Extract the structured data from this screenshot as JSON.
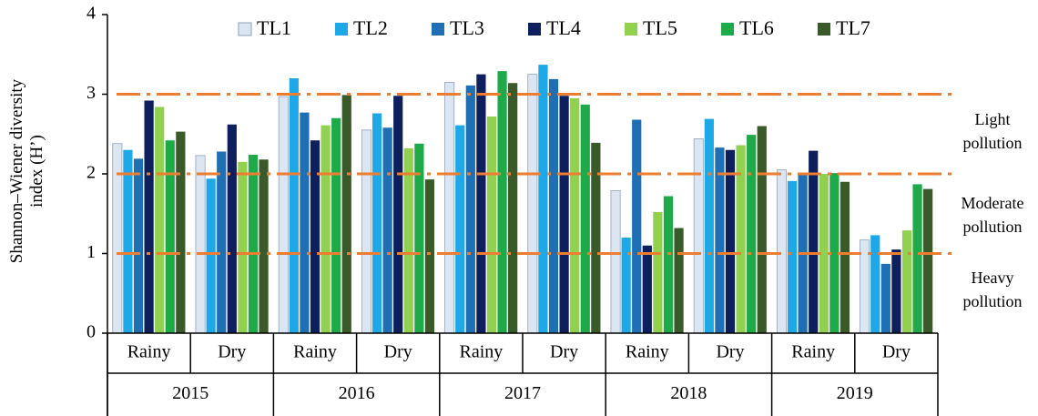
{
  "chart_data": {
    "type": "bar",
    "ylabel": "Shannon–Wiener diversity index (H’)",
    "categories": [
      "Rainy",
      "Dry",
      "Rainy",
      "Dry",
      "Rainy",
      "Dry",
      "Rainy",
      "Dry",
      "Rainy",
      "Dry"
    ],
    "x_groups": [
      "2015",
      "2016",
      "2017",
      "2018",
      "2019"
    ],
    "series": [
      {
        "name": "TL1",
        "color": "#dce6f2",
        "values": [
          2.38,
          2.23,
          2.97,
          2.55,
          3.15,
          3.25,
          1.79,
          2.44,
          2.05,
          1.17
        ]
      },
      {
        "name": "TL2",
        "color": "#1fa8e8",
        "values": [
          2.3,
          1.94,
          3.2,
          2.76,
          2.61,
          3.37,
          1.2,
          2.69,
          1.91,
          1.23
        ]
      },
      {
        "name": "TL3",
        "color": "#1f6fb5",
        "values": [
          2.19,
          2.28,
          2.77,
          2.58,
          3.11,
          3.19,
          2.68,
          2.33,
          2.0,
          0.87
        ]
      },
      {
        "name": "TL4",
        "color": "#0d1f5c",
        "values": [
          2.92,
          2.62,
          2.42,
          2.98,
          3.25,
          2.98,
          1.1,
          2.3,
          2.29,
          1.05
        ]
      },
      {
        "name": "TL5",
        "color": "#92d050",
        "values": [
          2.84,
          2.15,
          2.61,
          2.32,
          2.72,
          2.95,
          1.52,
          2.36,
          2.0,
          1.29
        ]
      },
      {
        "name": "TL6",
        "color": "#1faa4a",
        "values": [
          2.42,
          2.24,
          2.7,
          2.38,
          3.29,
          2.87,
          1.72,
          2.49,
          2.01,
          1.87
        ]
      },
      {
        "name": "TL7",
        "color": "#3a5a2a",
        "values": [
          2.53,
          2.18,
          2.99,
          1.93,
          3.14,
          2.39,
          1.32,
          2.6,
          1.9,
          1.81
        ]
      }
    ],
    "ylim": [
      0,
      4
    ],
    "yticks": [
      0,
      1,
      2,
      3,
      4
    ],
    "reference_lines": [
      {
        "value": 3,
        "color": "#ed7d31"
      },
      {
        "value": 2,
        "color": "#ed7d31"
      },
      {
        "value": 1,
        "color": "#ed7d31"
      }
    ],
    "annotations": [
      "Light pollution",
      "Moderate pollution",
      "Heavy pollution"
    ],
    "legend": "top"
  }
}
